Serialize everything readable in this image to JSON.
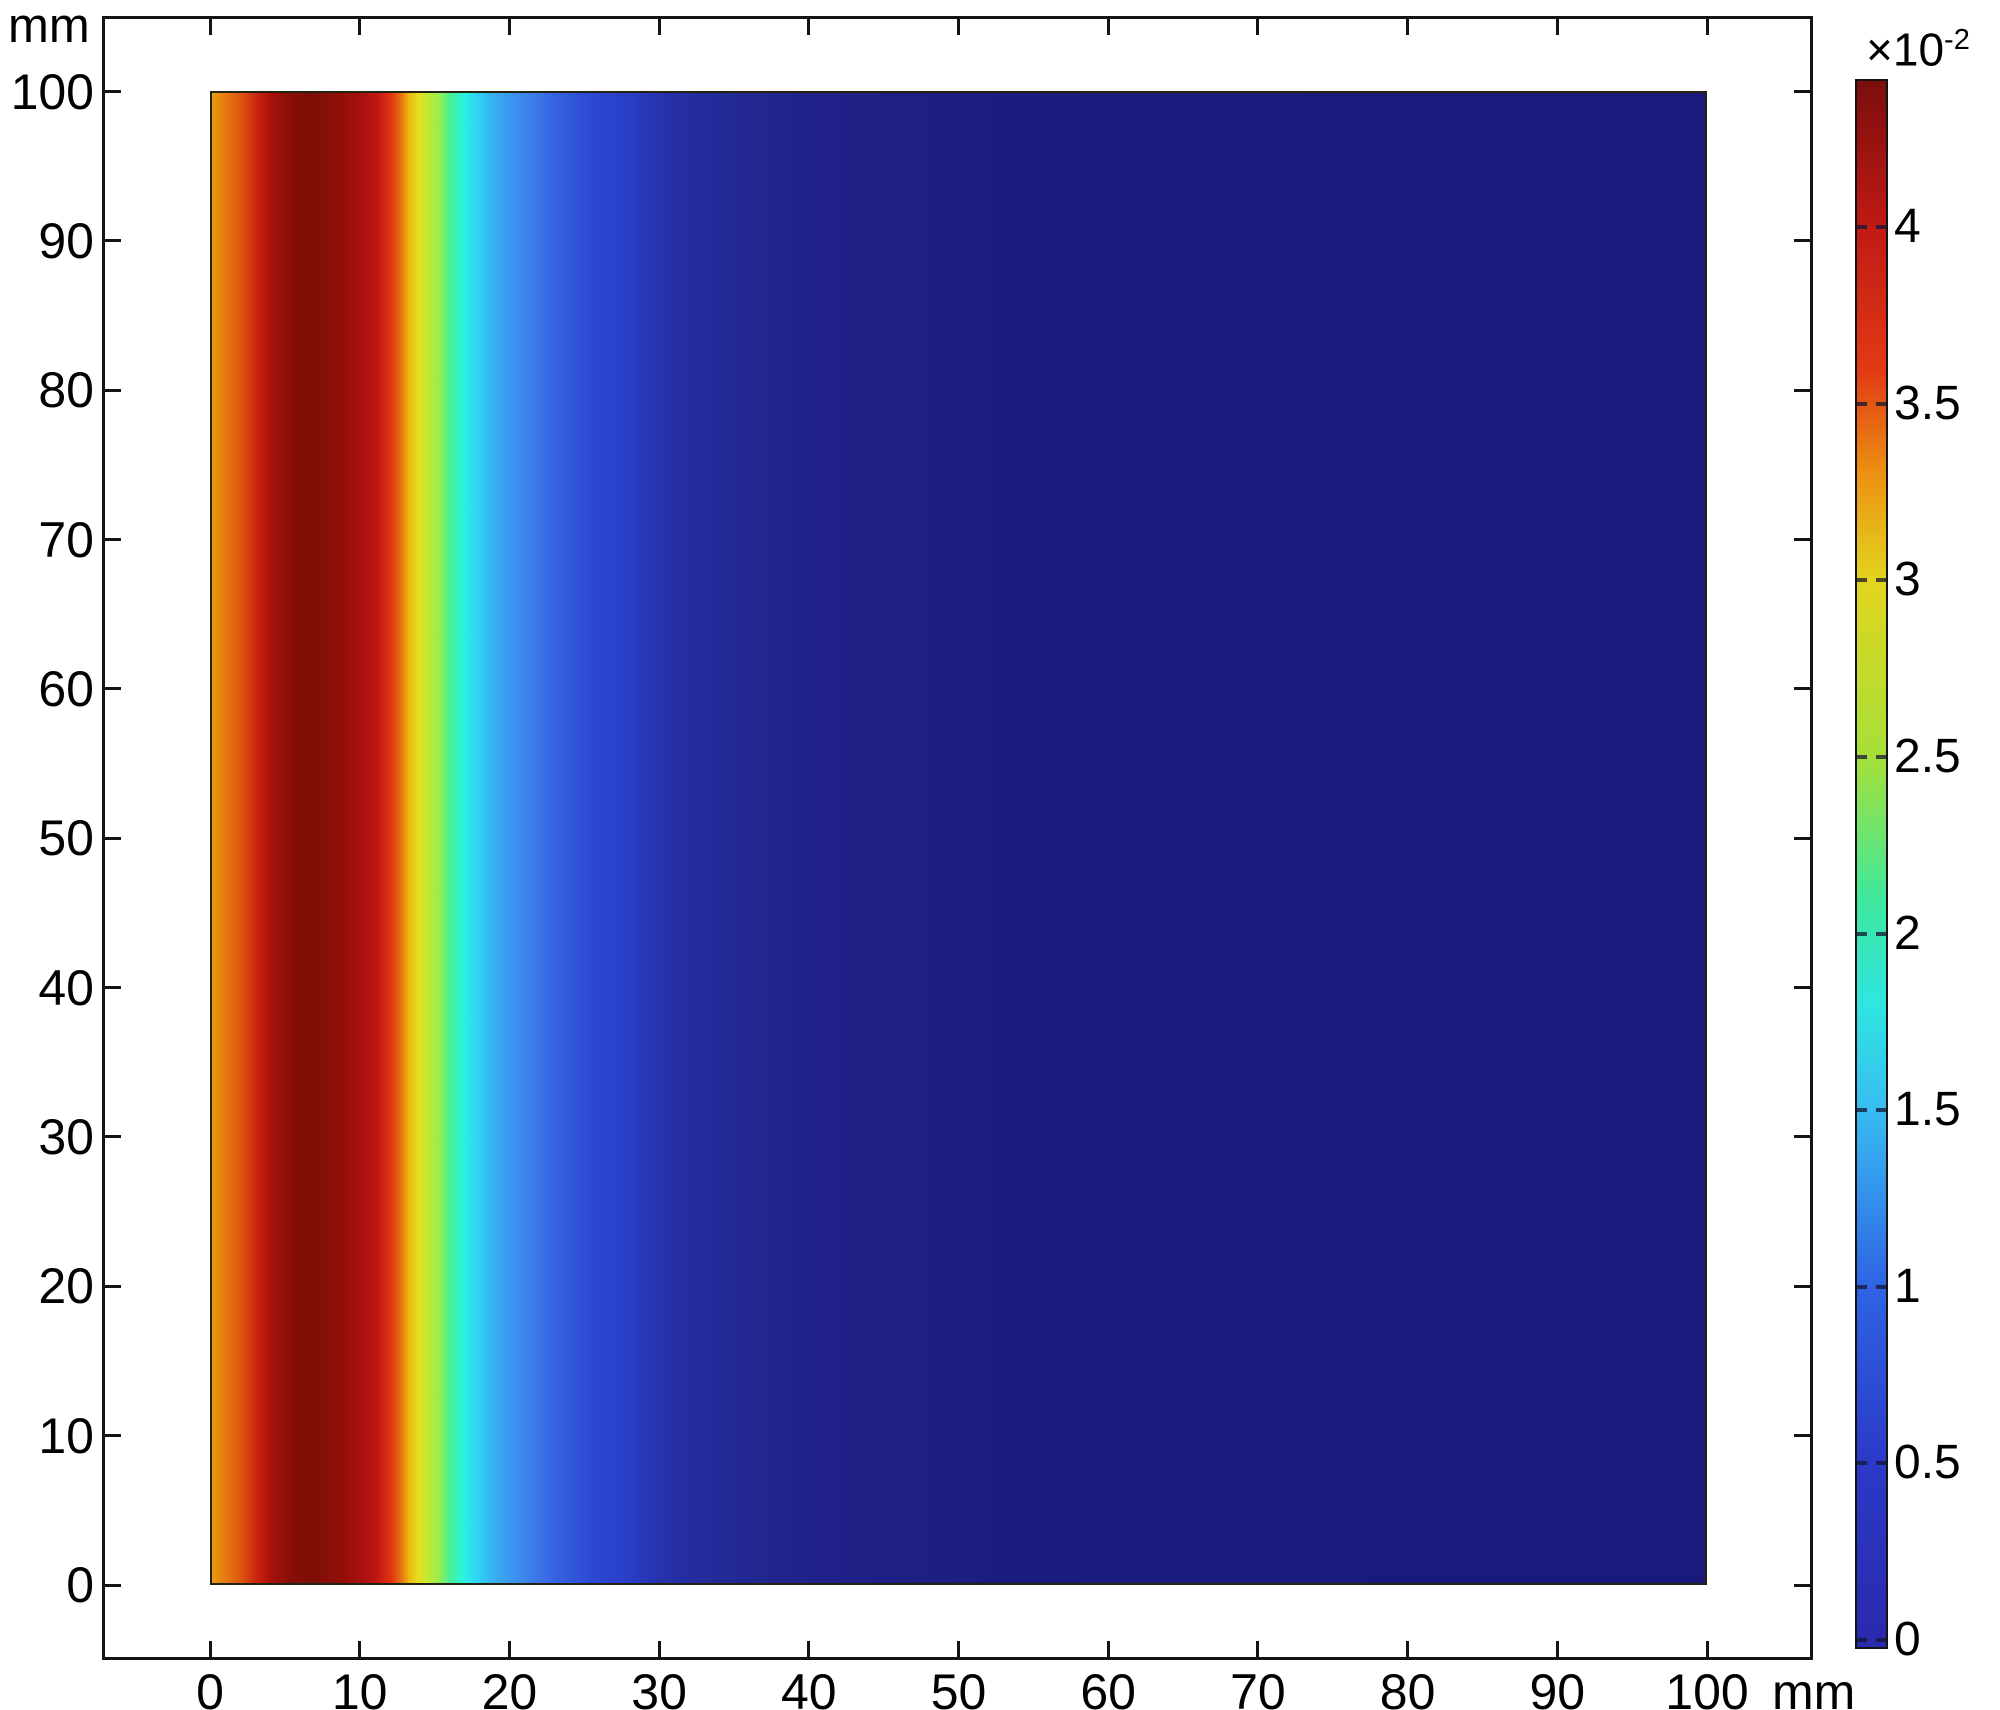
{
  "figure": {
    "background_color": "#ffffff",
    "frame_color": "#141414",
    "y_axis": {
      "unit_label": "mm",
      "tick_labels": [
        "0",
        "10",
        "20",
        "30",
        "40",
        "50",
        "60",
        "70",
        "80",
        "90",
        "100"
      ],
      "tick_values_mm": [
        0,
        10,
        20,
        30,
        40,
        50,
        60,
        70,
        80,
        90,
        100
      ]
    },
    "x_axis": {
      "unit_label": "mm",
      "tick_labels": [
        "0",
        "10",
        "20",
        "30",
        "40",
        "50",
        "60",
        "70",
        "80",
        "90",
        "100"
      ],
      "tick_values_mm": [
        0,
        10,
        20,
        30,
        40,
        50,
        60,
        70,
        80,
        90,
        100
      ]
    },
    "colorbar": {
      "multiplier_base": "×10",
      "multiplier_exponent": "-2",
      "tick_labels": [
        "0",
        "0.5",
        "1",
        "1.5",
        "2",
        "2.5",
        "3",
        "3.5",
        "4"
      ],
      "tick_values": [
        0,
        0.5,
        1,
        1.5,
        2,
        2.5,
        3,
        3.5,
        4
      ],
      "value_min": 0,
      "value_max": 4.42
    }
  },
  "chart_data": {
    "type": "heatmap",
    "title": "",
    "xlabel": "mm",
    "ylabel": "mm",
    "x_range_mm": [
      0,
      100
    ],
    "y_range_mm": [
      0,
      100
    ],
    "value_multiplier": "1e-2",
    "value_range_x1e2": [
      0,
      4.42
    ],
    "grid": false,
    "legend_position": "right-colorbar",
    "uniform_along_y": true,
    "peak": {
      "x_mm": 6.5,
      "value_x1e2": 4.42
    },
    "profile_x_mm": [
      0,
      1,
      2,
      3,
      4,
      5,
      6.5,
      8,
      9,
      10,
      11,
      12,
      12.7,
      13.2,
      13.8,
      14.4,
      15.2,
      16,
      16.8,
      17.6,
      18.7,
      20,
      21.5,
      23,
      25.5,
      28,
      31,
      34,
      38,
      43,
      50,
      60,
      100
    ],
    "profile_value_x1e2": [
      3.3,
      3.5,
      3.75,
      4.0,
      4.25,
      4.38,
      4.42,
      4.38,
      4.3,
      4.15,
      3.95,
      3.6,
      3.3,
      3.1,
      2.95,
      2.7,
      2.4,
      2.1,
      1.85,
      1.7,
      1.55,
      1.35,
      1.15,
      0.97,
      0.75,
      0.6,
      0.45,
      0.35,
      0.27,
      0.2,
      0.13,
      0.07,
      0.02
    ],
    "surface_gradient_stops": [
      [
        0,
        "#e89c0e"
      ],
      [
        1,
        "#e4760f"
      ],
      [
        2,
        "#dd5410"
      ],
      [
        3,
        "#cb2312"
      ],
      [
        4,
        "#a81109"
      ],
      [
        5,
        "#8e0f08"
      ],
      [
        6.5,
        "#7d0d07"
      ],
      [
        8,
        "#8a0f08"
      ],
      [
        9,
        "#970f0a"
      ],
      [
        10,
        "#a81110"
      ],
      [
        11,
        "#c01613"
      ],
      [
        12,
        "#de3512"
      ],
      [
        12.7,
        "#ea7411"
      ],
      [
        13.2,
        "#ecb90f"
      ],
      [
        13.8,
        "#e6dc20"
      ],
      [
        14.4,
        "#c6e832"
      ],
      [
        15.2,
        "#97ee4e"
      ],
      [
        16,
        "#45f19b"
      ],
      [
        16.8,
        "#2df3dd"
      ],
      [
        17.6,
        "#2ed9f3"
      ],
      [
        18.7,
        "#35b5f2"
      ],
      [
        20,
        "#3b97ee"
      ],
      [
        21.5,
        "#3c7cea"
      ],
      [
        23,
        "#3562e0"
      ],
      [
        25.5,
        "#2c48d4"
      ],
      [
        28,
        "#2a3dc4"
      ],
      [
        31,
        "#252ea4"
      ],
      [
        34,
        "#232a97"
      ],
      [
        38,
        "#21248c"
      ],
      [
        43,
        "#1f2086"
      ],
      [
        50,
        "#1d1d81"
      ],
      [
        60,
        "#1b1b7e"
      ],
      [
        100,
        "#1a1a7c"
      ]
    ],
    "colormap_stops": [
      [
        0,
        "#2a2aae"
      ],
      [
        0.5,
        "#2b3ac8"
      ],
      [
        1,
        "#2f64e4"
      ],
      [
        1.5,
        "#38bcf2"
      ],
      [
        1.8,
        "#2fe6e0"
      ],
      [
        2.1,
        "#3fe89c"
      ],
      [
        2.5,
        "#a6e038"
      ],
      [
        3,
        "#e2d51e"
      ],
      [
        3.3,
        "#ec9212"
      ],
      [
        3.6,
        "#e13a14"
      ],
      [
        4,
        "#c11a15"
      ],
      [
        4.42,
        "#7b0e0d"
      ]
    ]
  }
}
